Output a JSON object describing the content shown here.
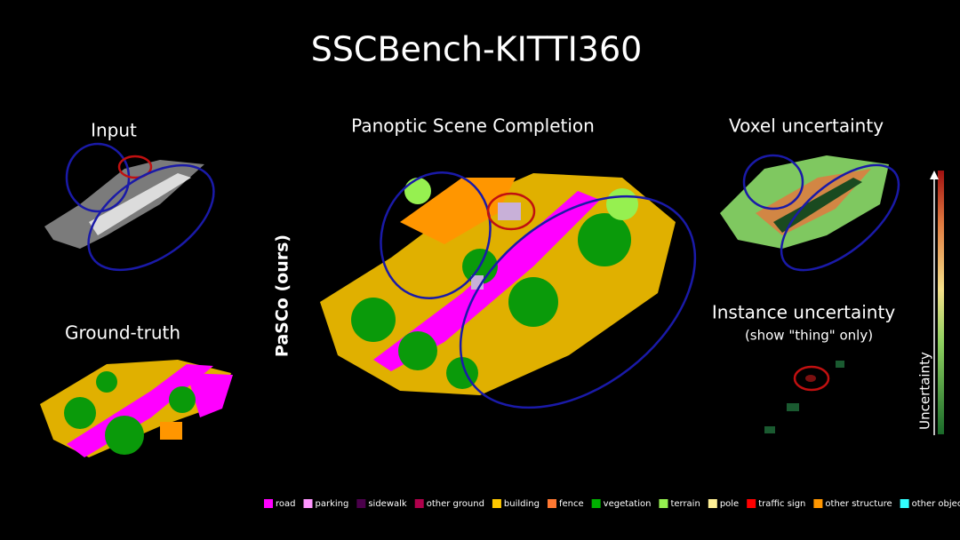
{
  "title": "SSCBench-KITTI360",
  "panels": {
    "input": "Input",
    "ground_truth": "Ground-truth",
    "main": "Panoptic Scene Completion",
    "method": "PaSCo (ours)",
    "voxel_uncertainty": "Voxel uncertainty",
    "instance_uncertainty": "Instance uncertainty",
    "instance_note": "(show \"thing\" only)",
    "colorbar": "Uncertainty"
  },
  "legend": [
    {
      "label": "road",
      "color": "#ff00ff"
    },
    {
      "label": "parking",
      "color": "#ff96ff"
    },
    {
      "label": "sidewalk",
      "color": "#4b004b"
    },
    {
      "label": "other ground",
      "color": "#af004b"
    },
    {
      "label": "building",
      "color": "#ffc800"
    },
    {
      "label": "fence",
      "color": "#ff7832"
    },
    {
      "label": "vegetation",
      "color": "#00af00"
    },
    {
      "label": "terrain",
      "color": "#96f050"
    },
    {
      "label": "pole",
      "color": "#fff096"
    },
    {
      "label": "traffic sign",
      "color": "#ff0000"
    },
    {
      "label": "other structure",
      "color": "#ff9600"
    },
    {
      "label": "other object",
      "color": "#32ffff"
    }
  ]
}
